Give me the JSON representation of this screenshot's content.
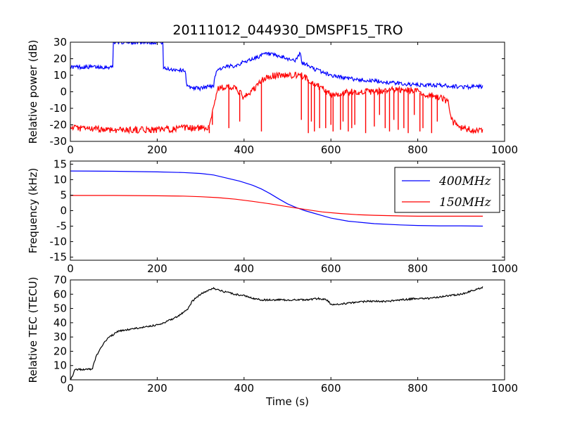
{
  "title": "20111012_044930_DMSPF15_TRO",
  "chart_data": [
    {
      "type": "line",
      "ylabel": "Relative power (dB)",
      "xlabel": "",
      "xlim": [
        0,
        1000
      ],
      "ylim": [
        -30,
        30
      ],
      "xticks": [
        0,
        200,
        400,
        600,
        800,
        1000
      ],
      "yticks": [
        -30,
        -20,
        -10,
        0,
        10,
        20,
        30
      ],
      "grid": false,
      "series": [
        {
          "color": "#0000ff",
          "noise": 1.2,
          "x": [
            0,
            98,
            99,
            100,
            212,
            213,
            214,
            265,
            268,
            300,
            330,
            336,
            345,
            360,
            380,
            400,
            420,
            440,
            450,
            470,
            500,
            520,
            530,
            532,
            534,
            540,
            560,
            580,
            600,
            640,
            680,
            720,
            760,
            800,
            850,
            900,
            950
          ],
          "y": [
            15,
            15,
            30,
            30,
            30,
            30,
            14,
            13,
            3,
            2,
            4,
            13,
            14,
            15,
            16,
            18,
            20,
            22,
            23,
            22,
            20,
            19,
            24,
            18,
            17,
            17,
            14,
            12,
            10,
            8,
            7,
            6,
            5,
            4,
            4,
            3,
            3
          ]
        },
        {
          "color": "#ff0000",
          "noise": 2.0,
          "x": [
            0,
            100,
            200,
            260,
            300,
            320,
            330,
            340,
            360,
            380,
            395,
            400,
            410,
            425,
            440,
            450,
            470,
            500,
            530,
            545,
            560,
            580,
            600,
            640,
            680,
            700,
            740,
            780,
            800,
            820,
            850,
            870,
            880,
            900,
            950
          ],
          "y": [
            -22,
            -23,
            -23,
            -22,
            -22,
            -21,
            -8,
            2,
            3,
            2,
            -2,
            -4,
            -1,
            2,
            7,
            8,
            10,
            10,
            10,
            8,
            5,
            2,
            -2,
            0,
            0,
            0,
            1,
            1,
            0,
            -2,
            -3,
            -6,
            -18,
            -22,
            -24
          ]
        }
      ],
      "dropouts": [
        {
          "series": 1,
          "x": [
            320,
            327,
            365,
            390,
            440,
            532,
            548,
            555,
            562,
            574,
            588,
            600,
            605,
            622,
            628,
            640,
            648,
            655,
            680,
            700,
            712,
            725,
            735,
            745,
            755,
            768,
            778,
            792,
            805,
            812,
            832,
            845
          ],
          "y": [
            -25,
            -20,
            -22,
            -18,
            -24,
            -17,
            -25,
            -18,
            -24,
            -22,
            -22,
            -20,
            -24,
            -23,
            -18,
            -24,
            -22,
            -20,
            -25,
            -21,
            -14,
            -22,
            -24,
            -17,
            -23,
            -22,
            -25,
            -14,
            -24,
            -22,
            -25,
            -18
          ]
        }
      ]
    },
    {
      "type": "line",
      "ylabel": "Frequency (kHz)",
      "xlabel": "",
      "xlim": [
        0,
        1000
      ],
      "ylim": [
        -16,
        16
      ],
      "xticks": [
        0,
        200,
        400,
        600,
        800,
        1000
      ],
      "yticks": [
        -15,
        -10,
        -5,
        0,
        5,
        10,
        15
      ],
      "grid": false,
      "legend": "upper-right",
      "series": [
        {
          "name": "400MHz",
          "color": "#0000ff",
          "x": [
            0,
            100,
            200,
            260,
            300,
            330,
            360,
            390,
            420,
            440,
            460,
            480,
            500,
            520,
            540,
            560,
            580,
            600,
            640,
            700,
            760,
            800,
            850,
            900,
            950
          ],
          "y": [
            12.8,
            12.7,
            12.5,
            12.3,
            12.0,
            11.5,
            10.5,
            9.5,
            8.2,
            7.0,
            5.5,
            3.8,
            2.2,
            1.0,
            0,
            -0.8,
            -1.6,
            -2.4,
            -3.4,
            -4.2,
            -4.6,
            -4.8,
            -4.9,
            -4.9,
            -5.0
          ]
        },
        {
          "name": "150MHz",
          "color": "#ff0000",
          "x": [
            0,
            100,
            200,
            260,
            300,
            340,
            380,
            420,
            460,
            500,
            540,
            580,
            620,
            660,
            700,
            760,
            800,
            850,
            900,
            950
          ],
          "y": [
            4.9,
            4.9,
            4.8,
            4.7,
            4.5,
            4.2,
            3.7,
            3.0,
            2.2,
            1.3,
            0.4,
            -0.4,
            -0.9,
            -1.3,
            -1.5,
            -1.7,
            -1.8,
            -1.8,
            -1.8,
            -1.8
          ]
        }
      ]
    },
    {
      "type": "line",
      "ylabel": "Relative TEC (TECU)",
      "xlabel": "Time (s)",
      "xlim": [
        0,
        1000
      ],
      "ylim": [
        0,
        70
      ],
      "xticks": [
        0,
        200,
        400,
        600,
        800,
        1000
      ],
      "yticks": [
        0,
        10,
        20,
        30,
        40,
        50,
        60,
        70
      ],
      "grid": false,
      "series": [
        {
          "color": "#000000",
          "noise": 0.6,
          "x": [
            0,
            5,
            10,
            20,
            30,
            40,
            50,
            55,
            60,
            70,
            80,
            90,
            100,
            110,
            130,
            150,
            170,
            190,
            210,
            230,
            250,
            270,
            280,
            300,
            320,
            330,
            350,
            380,
            400,
            420,
            440,
            470,
            500,
            540,
            570,
            590,
            600,
            620,
            650,
            680,
            700,
            730,
            760,
            800,
            830,
            850,
            870,
            900,
            950
          ],
          "y": [
            0,
            3,
            7,
            7.5,
            7,
            7.5,
            7.2,
            12,
            17,
            22,
            27,
            30,
            32,
            34,
            35,
            36,
            37,
            38,
            39,
            42,
            45,
            49,
            55,
            60,
            63,
            64,
            62,
            60,
            59,
            57,
            56,
            56,
            56,
            56,
            57,
            56,
            53,
            53,
            54,
            55,
            55,
            55,
            56,
            57,
            57,
            58,
            59,
            60,
            65
          ]
        }
      ]
    }
  ]
}
